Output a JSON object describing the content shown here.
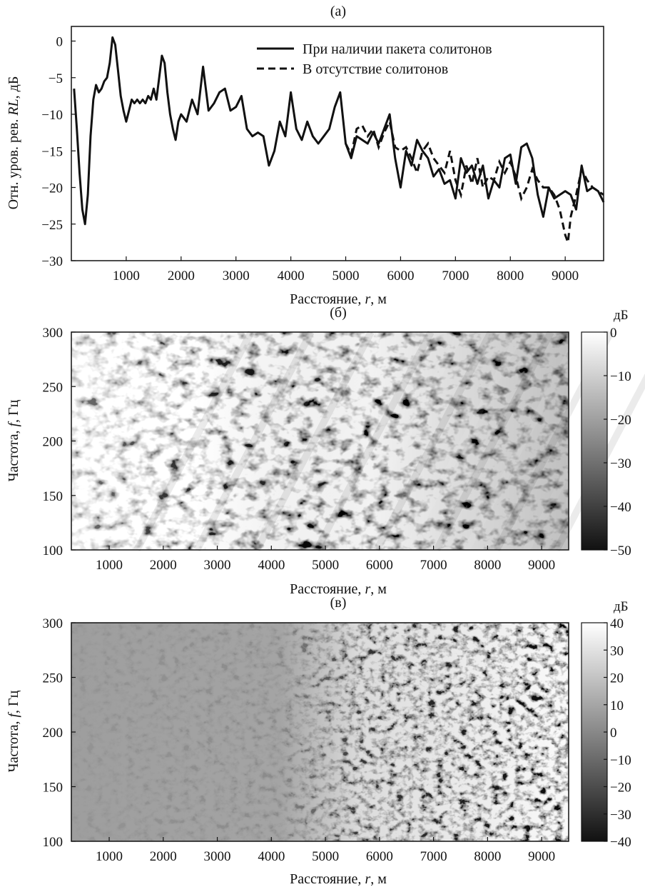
{
  "chart_data": [
    {
      "type": "line",
      "title": "(а)",
      "xlabel": "Расстояние, r, м",
      "ylabel": "Отн. уров. рев. RL, дБ",
      "xlim": [
        0,
        9700
      ],
      "ylim": [
        -30,
        2
      ],
      "xticks": [
        1000,
        2000,
        3000,
        4000,
        5000,
        6000,
        7000,
        8000,
        9000
      ],
      "yticks": [
        0,
        -5,
        -10,
        -15,
        -20,
        -25,
        -30
      ],
      "legend": "top-right",
      "series": [
        {
          "name": "При наличии пакета солитонов",
          "style": "solid",
          "x": [
            50,
            100,
            150,
            200,
            250,
            300,
            350,
            400,
            450,
            500,
            550,
            600,
            650,
            700,
            750,
            800,
            850,
            900,
            950,
            1000,
            1050,
            1100,
            1150,
            1200,
            1250,
            1300,
            1350,
            1400,
            1450,
            1500,
            1550,
            1600,
            1650,
            1700,
            1750,
            1800,
            1850,
            1900,
            1950,
            2000,
            2100,
            2200,
            2300,
            2400,
            2500,
            2600,
            2700,
            2800,
            2900,
            3000,
            3100,
            3200,
            3300,
            3400,
            3500,
            3600,
            3700,
            3800,
            3900,
            4000,
            4100,
            4200,
            4300,
            4400,
            4500,
            4600,
            4700,
            4800,
            4900,
            5000,
            5100,
            5200,
            5300,
            5400,
            5500,
            5600,
            5700,
            5800,
            5900,
            6000,
            6100,
            6200,
            6300,
            6400,
            6500,
            6600,
            6700,
            6800,
            6900,
            7000,
            7100,
            7200,
            7300,
            7400,
            7500,
            7600,
            7700,
            7800,
            7900,
            8000,
            8100,
            8200,
            8300,
            8400,
            8500,
            8600,
            8700,
            8800,
            8900,
            9000,
            9100,
            9200,
            9300,
            9400,
            9500,
            9600,
            9700
          ],
          "values": [
            -6.5,
            -12,
            -18,
            -23,
            -25,
            -21,
            -13,
            -8,
            -6,
            -7,
            -6.5,
            -5.5,
            -5,
            -3,
            0.5,
            -0.5,
            -4,
            -7.5,
            -9.5,
            -11,
            -9.5,
            -8,
            -8.5,
            -8,
            -8.5,
            -8,
            -8.5,
            -7.5,
            -8,
            -6.5,
            -8,
            -5,
            -2,
            -3,
            -7,
            -10,
            -12,
            -13.5,
            -11,
            -10,
            -11,
            -8,
            -10,
            -3.5,
            -9.5,
            -8.5,
            -7,
            -6.5,
            -9.5,
            -9,
            -7.5,
            -12,
            -13,
            -12.5,
            -13,
            -17,
            -15,
            -11,
            -13,
            -7,
            -12,
            -13.5,
            -11,
            -13,
            -14,
            -13,
            -12,
            -9,
            -7,
            -14,
            -16,
            -13,
            -13.5,
            -14,
            -12.5,
            -14,
            -12,
            -10,
            -16,
            -20,
            -15,
            -17,
            -13.5,
            -15,
            -16,
            -18.5,
            -17.5,
            -19.5,
            -19,
            -21.5,
            -16,
            -18,
            -17,
            -19.5,
            -17,
            -21.5,
            -19,
            -20,
            -16,
            -15.5,
            -19.5,
            -14.5,
            -14,
            -16,
            -21,
            -24,
            -20,
            -21.5,
            -21,
            -20.5,
            -21,
            -23,
            -17,
            -20.5,
            -20,
            -20.5,
            -22
          ]
        },
        {
          "name": "В отсутствие солитонов",
          "style": "dashed",
          "x": [
            5000,
            5100,
            5200,
            5300,
            5400,
            5500,
            5600,
            5700,
            5800,
            5900,
            6000,
            6100,
            6200,
            6300,
            6400,
            6500,
            6600,
            6700,
            6800,
            6900,
            7000,
            7100,
            7200,
            7300,
            7400,
            7500,
            7600,
            7700,
            7800,
            7900,
            8000,
            8100,
            8200,
            8300,
            8400,
            8500,
            8600,
            8700,
            8800,
            8900,
            9000,
            9050,
            9100,
            9200,
            9300,
            9400,
            9500,
            9600,
            9700
          ],
          "values": [
            -14,
            -15.5,
            -12,
            -11.5,
            -13,
            -12,
            -14.5,
            -12.5,
            -11,
            -14.5,
            -15,
            -14.5,
            -16,
            -18,
            -15,
            -14,
            -16,
            -17,
            -18,
            -15,
            -19,
            -21,
            -17,
            -19.5,
            -16,
            -20,
            -18.5,
            -19,
            -16.5,
            -18,
            -16.5,
            -18.5,
            -21.5,
            -20,
            -17.5,
            -19,
            -20,
            -20,
            -21,
            -23,
            -26.5,
            -27.5,
            -24,
            -21,
            -17.5,
            -19,
            -20,
            -20.5,
            -21
          ]
        }
      ]
    },
    {
      "type": "heatmap",
      "title": "(б)",
      "xlabel": "Расстояние, r, м",
      "ylabel": "Частота, f, Гц",
      "xlim": [
        300,
        9500
      ],
      "ylim": [
        100,
        300
      ],
      "xticks": [
        1000,
        2000,
        3000,
        4000,
        5000,
        6000,
        7000,
        8000,
        9000
      ],
      "yticks": [
        100,
        150,
        200,
        250,
        300
      ],
      "colorbar": {
        "unit": "дБ",
        "range": [
          -50,
          0
        ],
        "ticks": [
          0,
          -10,
          -20,
          -30,
          -40,
          -50
        ],
        "colormap": "gray"
      }
    },
    {
      "type": "heatmap",
      "title": "(в)",
      "xlabel": "Расстояние, r, м",
      "ylabel": "Частота, f, Гц",
      "xlim": [
        300,
        9500
      ],
      "ylim": [
        100,
        300
      ],
      "xticks": [
        1000,
        2000,
        3000,
        4000,
        5000,
        6000,
        7000,
        8000,
        9000
      ],
      "yticks": [
        100,
        150,
        200,
        250,
        300
      ],
      "colorbar": {
        "unit": "дБ",
        "range": [
          -40,
          40
        ],
        "ticks": [
          40,
          30,
          20,
          10,
          0,
          -10,
          -20,
          -30,
          -40
        ],
        "colormap": "gray"
      }
    }
  ]
}
